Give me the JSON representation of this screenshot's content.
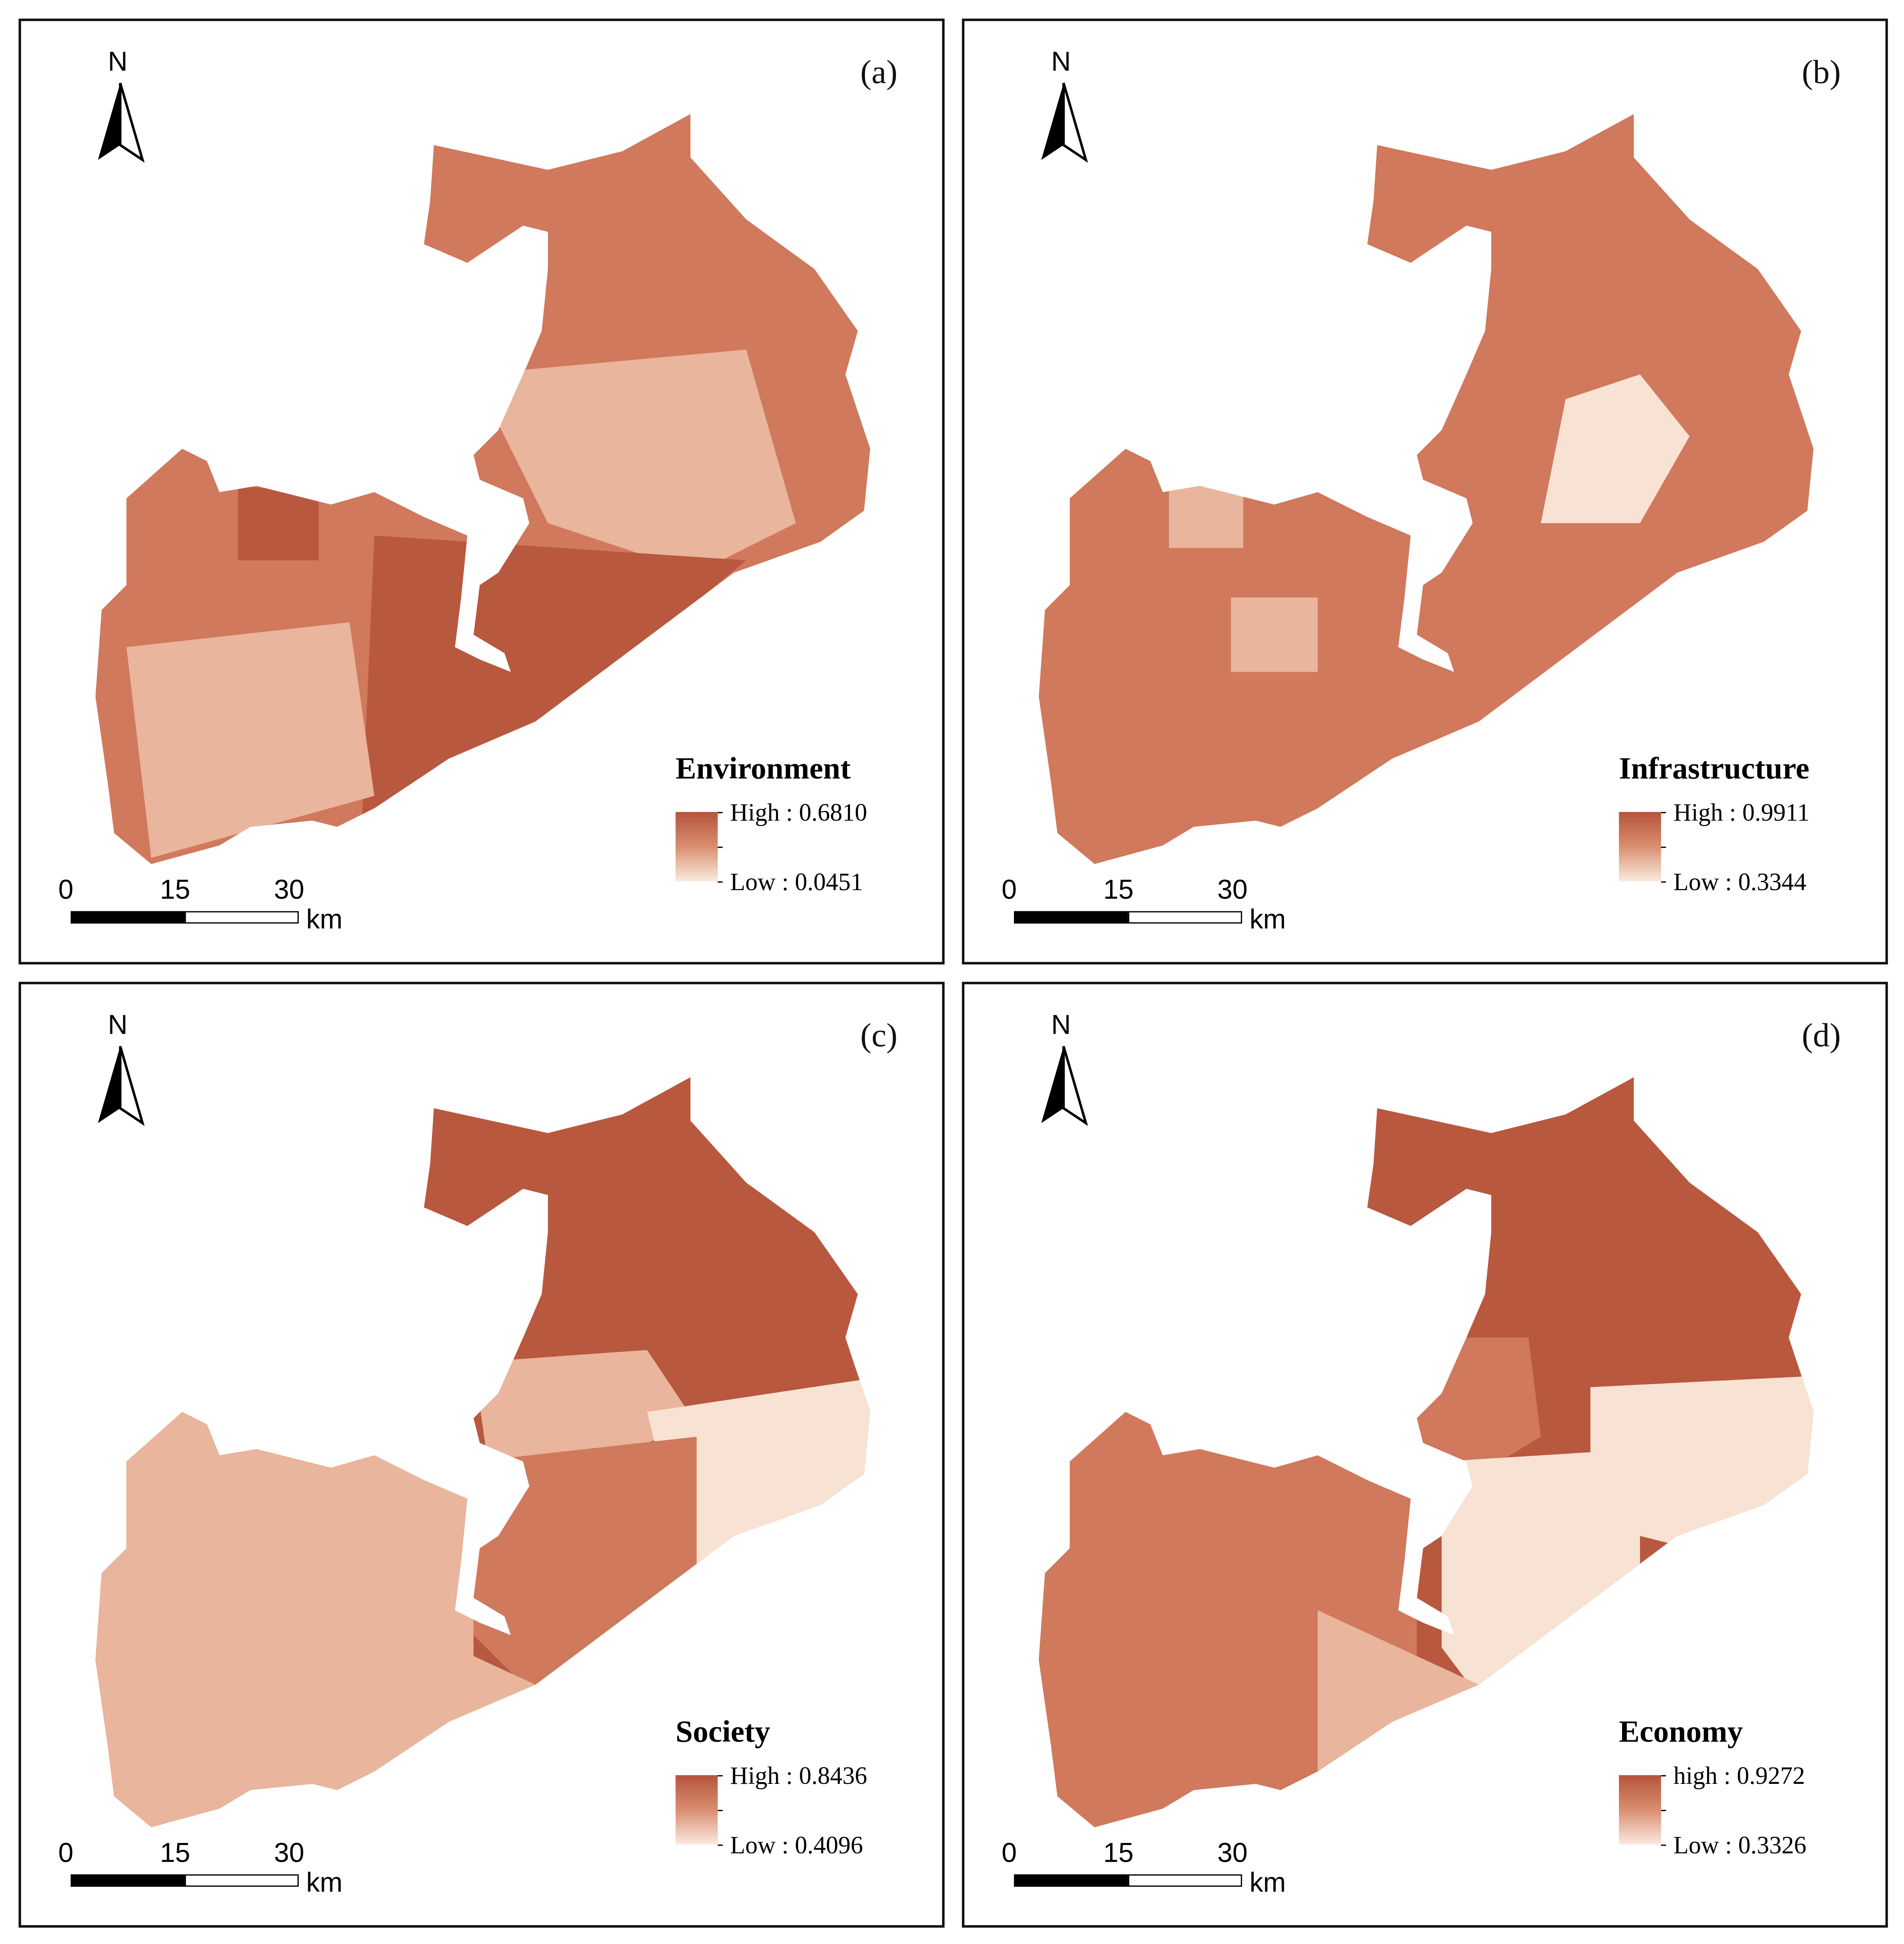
{
  "figure": {
    "colors": {
      "high": "#b5543c",
      "mid": "#d98e70",
      "low": "#fbeadf"
    },
    "panels": [
      {
        "label": "(a)",
        "north": "N",
        "legend": {
          "title": "Environment",
          "high": "High : 0.6810",
          "low": "Low : 0.0451"
        },
        "scale": {
          "ticks": [
            "0",
            "15",
            "30"
          ],
          "unit": "km"
        }
      },
      {
        "label": "(b)",
        "north": "N",
        "legend": {
          "title": "Infrastructure",
          "high": "High : 0.9911",
          "low": "Low : 0.3344"
        },
        "scale": {
          "ticks": [
            "0",
            "15",
            "30"
          ],
          "unit": "km"
        }
      },
      {
        "label": "(c)",
        "north": "N",
        "legend": {
          "title": "Society",
          "high": "High : 0.8436",
          "low": "Low : 0.4096"
        },
        "scale": {
          "ticks": [
            "0",
            "15",
            "30"
          ],
          "unit": "km"
        }
      },
      {
        "label": "(d)",
        "north": "N",
        "legend": {
          "title": "Economy",
          "high": "high : 0.9272",
          "low": "Low : 0.3326"
        },
        "scale": {
          "ticks": [
            "0",
            "15",
            "30"
          ],
          "unit": "km"
        }
      }
    ]
  }
}
